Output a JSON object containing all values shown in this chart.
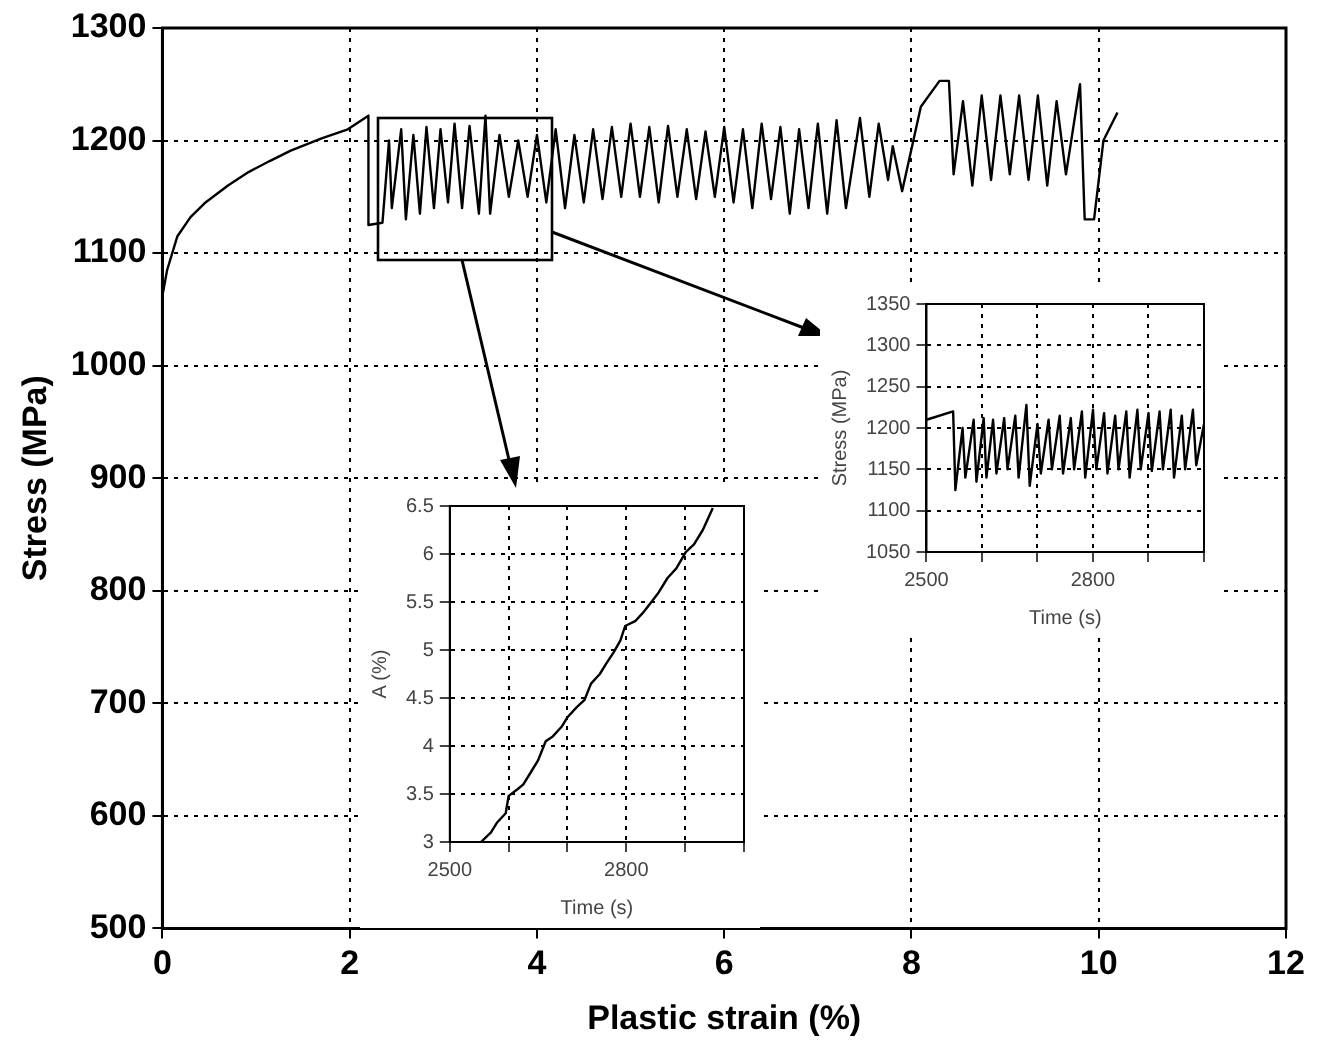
{
  "chart_data": [
    {
      "type": "line",
      "xlabel": "Plastic strain (%)",
      "ylabel": "Stress (MPa)",
      "xlim": [
        0,
        12
      ],
      "xticks": [
        0,
        2,
        4,
        6,
        8,
        10,
        12
      ],
      "ylim": [
        500,
        1300
      ],
      "yticks": [
        500,
        600,
        700,
        800,
        900,
        1000,
        1100,
        1200,
        1300
      ],
      "grid": true,
      "legend": false,
      "marker": "none",
      "line_style": "solid",
      "series": [
        {
          "color": "#000000",
          "x": [
            0,
            0.05,
            0.16,
            0.3,
            0.46,
            0.7,
            0.92,
            1.15,
            1.37,
            1.7,
            1.98,
            2.2,
            2.2,
            2.35,
            2.42,
            2.45,
            2.55,
            2.6,
            2.68,
            2.75,
            2.82,
            2.9,
            2.97,
            3.05,
            3.12,
            3.2,
            3.28,
            3.38,
            3.45,
            3.5,
            3.6,
            3.7,
            3.8,
            3.9,
            4.0,
            4.1,
            4.2,
            4.3,
            4.4,
            4.5,
            4.6,
            4.7,
            4.8,
            4.9,
            5.0,
            5.1,
            5.2,
            5.3,
            5.4,
            5.5,
            5.6,
            5.7,
            5.8,
            5.9,
            6.0,
            6.1,
            6.2,
            6.3,
            6.4,
            6.5,
            6.6,
            6.7,
            6.8,
            6.9,
            7.0,
            7.1,
            7.2,
            7.3,
            7.45,
            7.55,
            7.65,
            7.75,
            7.8,
            7.9,
            8.1,
            8.3,
            8.4,
            8.45,
            8.55,
            8.65,
            8.75,
            8.85,
            8.95,
            9.05,
            9.15,
            9.25,
            9.35,
            9.45,
            9.55,
            9.65,
            9.8,
            9.85,
            9.95,
            10.05,
            10.2
          ],
          "values": [
            1062,
            1085,
            1115,
            1132,
            1145,
            1160,
            1172,
            1182,
            1191,
            1202,
            1210,
            1222,
            1125,
            1127,
            1200,
            1140,
            1210,
            1130,
            1205,
            1135,
            1212,
            1140,
            1210,
            1145,
            1215,
            1140,
            1213,
            1135,
            1222,
            1135,
            1205,
            1150,
            1200,
            1150,
            1205,
            1145,
            1210,
            1140,
            1205,
            1145,
            1210,
            1148,
            1212,
            1150,
            1215,
            1150,
            1212,
            1145,
            1213,
            1150,
            1210,
            1148,
            1208,
            1150,
            1212,
            1145,
            1210,
            1140,
            1215,
            1148,
            1212,
            1135,
            1210,
            1140,
            1215,
            1135,
            1218,
            1140,
            1220,
            1150,
            1215,
            1165,
            1195,
            1155,
            1230,
            1253,
            1253,
            1170,
            1235,
            1160,
            1240,
            1165,
            1240,
            1170,
            1240,
            1165,
            1240,
            1160,
            1235,
            1170,
            1250,
            1130,
            1130,
            1200,
            1225
          ]
        }
      ]
    },
    {
      "type": "line",
      "xlabel": "Time (s)",
      "ylabel": "A (%)",
      "xlim": [
        2500,
        3000
      ],
      "xticks": [
        2500,
        {
          "value": 2600,
          "label": null
        },
        {
          "value": 2700,
          "label": null
        },
        2800,
        {
          "value": 2900,
          "label": null
        },
        {
          "value": 3000,
          "label": null
        }
      ],
      "ylim": [
        3,
        6.5
      ],
      "yticks": [
        3,
        3.5,
        4,
        4.5,
        5,
        5.5,
        6,
        6.5
      ],
      "grid": true,
      "legend": false,
      "marker": "none",
      "line_style": "solid",
      "series": [
        {
          "color": "#000000",
          "x": [
            2553,
            2570,
            2580,
            2595,
            2600,
            2615,
            2625,
            2640,
            2650,
            2663,
            2675,
            2690,
            2700,
            2715,
            2729,
            2740,
            2755,
            2765,
            2779,
            2790,
            2798,
            2815,
            2830,
            2840,
            2855,
            2870,
            2885,
            2901,
            2915,
            2930,
            2947
          ],
          "values": [
            3,
            3.1,
            3.2,
            3.3,
            3.48,
            3.55,
            3.6,
            3.75,
            3.85,
            4.05,
            4.1,
            4.2,
            4.3,
            4.4,
            4.48,
            4.65,
            4.75,
            4.85,
            4.98,
            5.1,
            5.25,
            5.3,
            5.4,
            5.48,
            5.6,
            5.75,
            5.85,
            6.02,
            6.1,
            6.25,
            6.48
          ]
        }
      ]
    },
    {
      "type": "line",
      "xlabel": "Time (s)",
      "ylabel": "Stress (MPa)",
      "xlim": [
        2500,
        3000
      ],
      "xticks": [
        2500,
        {
          "value": 2600,
          "label": null
        },
        {
          "value": 2700,
          "label": null
        },
        2800,
        {
          "value": 2900,
          "label": null
        },
        {
          "value": 3000,
          "label": null
        }
      ],
      "ylim": [
        1050,
        1350
      ],
      "yticks": [
        1050,
        1100,
        1150,
        1200,
        1250,
        1300,
        1350
      ],
      "grid": true,
      "legend": false,
      "marker": "none",
      "line_style": "solid",
      "series": [
        {
          "color": "#000000",
          "x": [
            2500,
            2548,
            2552,
            2565,
            2570,
            2585,
            2590,
            2603,
            2608,
            2620,
            2626,
            2640,
            2646,
            2660,
            2666,
            2680,
            2686,
            2700,
            2706,
            2720,
            2726,
            2740,
            2746,
            2760,
            2766,
            2780,
            2786,
            2800,
            2806,
            2820,
            2826,
            2840,
            2846,
            2860,
            2866,
            2880,
            2886,
            2900,
            2906,
            2920,
            2926,
            2940,
            2946,
            2960,
            2966,
            2980,
            2986,
            3000
          ],
          "values": [
            1210,
            1220,
            1125,
            1200,
            1140,
            1210,
            1135,
            1212,
            1140,
            1210,
            1145,
            1212,
            1150,
            1215,
            1140,
            1228,
            1130,
            1205,
            1145,
            1210,
            1150,
            1215,
            1145,
            1212,
            1150,
            1220,
            1140,
            1222,
            1150,
            1218,
            1145,
            1215,
            1150,
            1220,
            1140,
            1222,
            1150,
            1218,
            1148,
            1220,
            1150,
            1222,
            1140,
            1215,
            1150,
            1222,
            1155,
            1205
          ]
        }
      ]
    }
  ]
}
